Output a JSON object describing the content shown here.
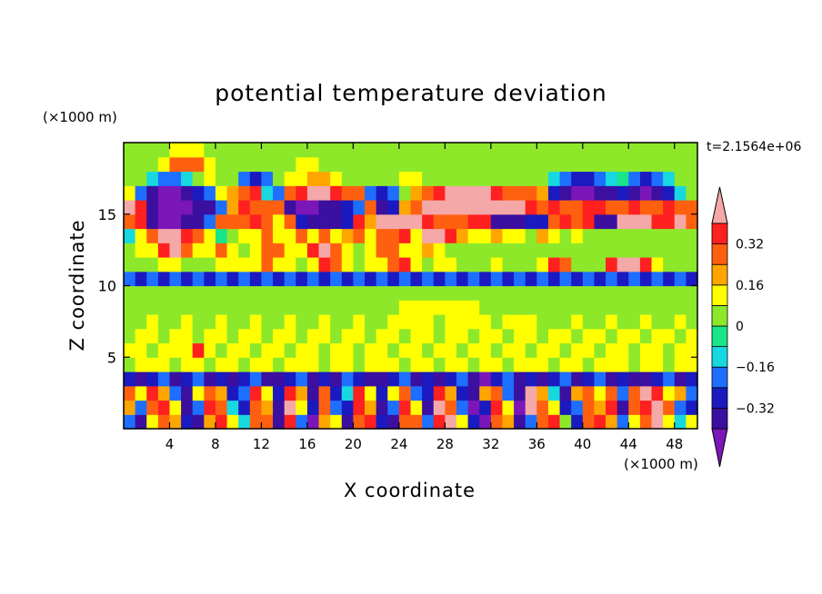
{
  "chart_data": {
    "type": "heatmap",
    "title": "potential temperature deviation",
    "xlabel": "X coordinate",
    "ylabel": "Z coordinate",
    "x_unit": "(×1000 m)",
    "z_unit": "(×1000 m)",
    "time_label": "t=2.1564e+06",
    "xlim": [
      0,
      50
    ],
    "ylim": [
      0,
      20
    ],
    "x_ticks": [
      4,
      8,
      12,
      16,
      20,
      24,
      28,
      32,
      36,
      40,
      44,
      48
    ],
    "y_ticks": [
      5,
      10,
      15
    ],
    "colorbar": {
      "levels": [
        -0.4,
        -0.32,
        -0.24,
        -0.16,
        -0.08,
        0,
        0.08,
        0.16,
        0.24,
        0.32,
        0.4
      ],
      "labels": [
        "0.32",
        "0.16",
        "0",
        "−0.16",
        "−0.32"
      ],
      "label_values": [
        0.32,
        0.16,
        0,
        -0.16,
        -0.32
      ],
      "colors": [
        "#7b16b8",
        "#3b0fa0",
        "#1a1ac0",
        "#1e6fff",
        "#17d8e0",
        "#18e48a",
        "#8ee82a",
        "#ffff00",
        "#ffa500",
        "#ff6010",
        "#ff2020",
        "#f5a8a8"
      ],
      "extend": "both"
    },
    "field": {
      "grid_spacing_km": 1,
      "description_levels": "value per cell in data units",
      "values": [
        [
          -0.2,
          -0.35,
          0.1,
          0.3,
          0.2,
          -0.3,
          -0.4,
          0.2,
          0.35,
          0.15,
          -0.1,
          0.25,
          0.3,
          -0.35,
          0.35,
          -0.2,
          -0.45,
          0.2,
          0.1,
          -0.4,
          0.3,
          0.35,
          -0.3,
          -0.4,
          0.25,
          0.3,
          -0.2,
          0.35,
          0.4,
          0.1,
          -0.3,
          -0.45,
          0.3,
          0.2,
          -0.4,
          -0.2,
          0.25,
          0.35,
          0.05,
          -0.3,
          0.25,
          0.35,
          0.2,
          -0.2,
          0.1,
          0.3,
          0.4,
          0.15,
          -0.1,
          0.1
        ],
        [
          0.2,
          -0.2,
          0.3,
          0.35,
          0.1,
          -0.4,
          -0.2,
          0.35,
          0.3,
          -0.1,
          -0.3,
          0.3,
          0.2,
          -0.4,
          0.4,
          0.1,
          -0.3,
          0.3,
          -0.2,
          -0.3,
          0.35,
          0.2,
          -0.4,
          -0.2,
          0.35,
          0.1,
          -0.35,
          0.4,
          0.25,
          -0.2,
          -0.45,
          -0.3,
          0.35,
          0.1,
          -0.45,
          0.4,
          0.3,
          0.1,
          -0.3,
          -0.2,
          0.3,
          0.2,
          0.35,
          -0.35,
          0.25,
          0.35,
          0.4,
          0.3,
          -0.2,
          -0.3
        ],
        [
          0.3,
          0.1,
          0.35,
          0.2,
          -0.2,
          -0.35,
          0.15,
          0.3,
          0.2,
          -0.3,
          -0.2,
          0.35,
          0.1,
          -0.3,
          0.35,
          0.2,
          -0.4,
          0.3,
          -0.3,
          -0.1,
          0.35,
          0.1,
          -0.3,
          0.1,
          0.3,
          -0.2,
          -0.3,
          0.35,
          0.2,
          -0.3,
          -0.4,
          0.2,
          0.3,
          -0.2,
          -0.35,
          0.4,
          0.2,
          -0.1,
          -0.35,
          0.2,
          0.3,
          0.1,
          0.3,
          -0.2,
          0.3,
          0.4,
          0.35,
          0.1,
          0.2,
          -0.2
        ],
        [
          -0.3,
          -0.35,
          -0.3,
          -0.2,
          -0.35,
          -0.3,
          -0.2,
          -0.35,
          -0.3,
          -0.4,
          -0.3,
          -0.2,
          -0.35,
          -0.4,
          -0.3,
          -0.2,
          -0.35,
          -0.3,
          -0.4,
          -0.2,
          -0.3,
          -0.35,
          -0.4,
          -0.3,
          -0.2,
          -0.35,
          -0.3,
          -0.4,
          -0.3,
          -0.2,
          -0.35,
          -0.45,
          -0.3,
          -0.2,
          -0.35,
          -0.3,
          -0.4,
          -0.3,
          -0.2,
          -0.35,
          -0.3,
          -0.2,
          -0.35,
          -0.3,
          -0.4,
          -0.35,
          -0.3,
          -0.2,
          -0.35,
          -0.3
        ],
        [
          0.05,
          0.08,
          0.1,
          0.08,
          0.05,
          0.1,
          0.08,
          0.05,
          0.1,
          0.08,
          0.05,
          0.08,
          0.1,
          0.05,
          0.08,
          0.1,
          0.08,
          0.05,
          0.1,
          0.08,
          0.05,
          0.08,
          0.1,
          0.08,
          0.05,
          0.1,
          0.08,
          0.05,
          0.1,
          0.08,
          0.05,
          0.08,
          0.1,
          0.05,
          0.08,
          0.1,
          0.08,
          0.05,
          0.1,
          0.08,
          0.05,
          0.08,
          0.1,
          0.08,
          0.05,
          0.1,
          0.08,
          0.05,
          0.1,
          0.08
        ],
        [
          0.08,
          0.1,
          0.05,
          0.1,
          0.08,
          0.1,
          0.35,
          0.1,
          0.05,
          0.08,
          0.1,
          0.05,
          0.08,
          0.1,
          0.05,
          0.08,
          0.1,
          0.05,
          0.08,
          0.1,
          0.05,
          0.08,
          0.1,
          0.05,
          0.08,
          0.1,
          0.05,
          0.08,
          0.1,
          0.05,
          0.08,
          0.1,
          0.05,
          0.08,
          0.1,
          0.05,
          0.08,
          0.1,
          0.05,
          0.08,
          0.1,
          0.05,
          0.08,
          0.1,
          0.05,
          0.08,
          0.1,
          0.05,
          0.08,
          0.1
        ],
        [
          0.05,
          0.08,
          0.1,
          0.05,
          0.08,
          0.1,
          0.05,
          0.08,
          0.1,
          0.05,
          0.08,
          0.1,
          0.05,
          0.08,
          0.1,
          0.05,
          0.08,
          0.1,
          0.05,
          0.08,
          0.1,
          0.05,
          0.08,
          0.1,
          0.05,
          0.08,
          0.1,
          0.05,
          0.08,
          0.1,
          0.05,
          0.08,
          0.1,
          0.05,
          0.08,
          0.1,
          0.05,
          0.08,
          0.1,
          0.05,
          0.08,
          0.1,
          0.05,
          0.08,
          0.1,
          0.05,
          0.08,
          0.1,
          0.05,
          0.08
        ],
        [
          0.02,
          0.05,
          0.08,
          0.02,
          0.05,
          0.08,
          0.02,
          0.05,
          0.08,
          0.02,
          0.05,
          0.08,
          0.02,
          0.05,
          0.08,
          0.02,
          0.05,
          0.08,
          0.02,
          0.05,
          0.08,
          0.02,
          0.05,
          0.08,
          0.1,
          0.1,
          0.08,
          0.05,
          0.08,
          0.1,
          0.1,
          0.08,
          0.05,
          0.08,
          0.1,
          0.08,
          0.05,
          0.02,
          0.05,
          0.08,
          0.02,
          0.05,
          0.08,
          0.02,
          0.05,
          0.08,
          0.02,
          0.05,
          0.08,
          0.02
        ],
        [
          0.02,
          0.02,
          0.05,
          0.02,
          0.02,
          0.05,
          0.02,
          0.02,
          0.05,
          0.02,
          0.02,
          0.05,
          0.02,
          0.02,
          0.05,
          0.02,
          0.02,
          0.05,
          0.02,
          0.02,
          0.05,
          0.02,
          0.02,
          0.05,
          0.1,
          0.1,
          0.1,
          0.1,
          0.1,
          0.1,
          0.1,
          0.05,
          0.02,
          0.05,
          0.02,
          0.02,
          0.05,
          0.02,
          0.02,
          0.05,
          0.02,
          0.02,
          0.05,
          0.02,
          0.02,
          0.05,
          0.02,
          0.02,
          0.05,
          0.02
        ],
        [
          0.02,
          0.02,
          0.02,
          0.02,
          0.02,
          0.02,
          0.02,
          0.02,
          0.02,
          0.02,
          0.02,
          0.02,
          0.02,
          0.02,
          0.02,
          0.02,
          0.02,
          0.02,
          0.02,
          0.02,
          0.02,
          0.02,
          0.02,
          0.02,
          0.02,
          0.02,
          0.02,
          0.02,
          0.02,
          0.02,
          0.02,
          0.02,
          0.02,
          0.02,
          0.02,
          0.02,
          0.02,
          0.02,
          0.02,
          0.02,
          0.02,
          0.02,
          0.02,
          0.02,
          0.02,
          0.02,
          0.02,
          0.02,
          0.02,
          0.02
        ],
        [
          -0.2,
          -0.3,
          -0.2,
          -0.3,
          -0.2,
          -0.3,
          -0.2,
          -0.3,
          -0.2,
          -0.3,
          -0.2,
          -0.3,
          -0.2,
          -0.3,
          -0.2,
          -0.3,
          -0.2,
          -0.3,
          -0.2,
          -0.3,
          -0.2,
          -0.3,
          -0.2,
          -0.3,
          -0.2,
          -0.3,
          -0.2,
          -0.3,
          -0.2,
          -0.3,
          -0.2,
          -0.3,
          -0.2,
          -0.3,
          -0.2,
          -0.3,
          -0.2,
          -0.3,
          -0.2,
          -0.3,
          -0.2,
          -0.3,
          -0.2,
          -0.3,
          -0.2,
          -0.3,
          -0.2,
          -0.3,
          -0.2,
          -0.3
        ],
        [
          0.02,
          0.02,
          0.05,
          0.08,
          0.1,
          0.05,
          0.02,
          0.05,
          0.08,
          0.1,
          0.12,
          0.15,
          0.3,
          0.1,
          0.08,
          0.05,
          0.1,
          0.35,
          0.25,
          0.1,
          0.05,
          0.08,
          0.1,
          0.3,
          0.35,
          0.1,
          0.05,
          0.08,
          0.1,
          0.05,
          0.02,
          0.05,
          0.08,
          0.05,
          0.02,
          0.05,
          0.08,
          0.35,
          0.3,
          0.05,
          0.02,
          0.05,
          0.35,
          0.4,
          0.4,
          0.35,
          0.1,
          0.05,
          0.02,
          0.02
        ],
        [
          0.05,
          0.08,
          0.1,
          0.35,
          0.4,
          0.3,
          0.15,
          0.08,
          0.3,
          0.1,
          0.05,
          0.08,
          0.25,
          0.3,
          0.1,
          0.08,
          0.35,
          0.4,
          0.3,
          0.08,
          0.05,
          0.1,
          0.25,
          0.3,
          0.1,
          0.08,
          0.2,
          0.1,
          0.05,
          0.05,
          0.05,
          0.05,
          0.05,
          0.05,
          0.05,
          0.05,
          0.05,
          0.05,
          0.05,
          0.05,
          0.05,
          0.05,
          0.05,
          0.05,
          0.05,
          0.05,
          0.05,
          0.05,
          0.05,
          0.05
        ],
        [
          -0.1,
          0.1,
          0.3,
          0.4,
          0.4,
          0.35,
          0.3,
          0.1,
          -0.05,
          0.05,
          0.08,
          0.1,
          0.3,
          0.1,
          0.08,
          0.3,
          0.1,
          0.25,
          0.1,
          0.2,
          0.3,
          0.1,
          0.25,
          0.3,
          0.35,
          0.1,
          0.4,
          0.4,
          0.35,
          0.2,
          0.1,
          0.1,
          0.2,
          0.1,
          0.08,
          0.05,
          0.2,
          0.1,
          0.05,
          0.08,
          0.05,
          0.05,
          0.05,
          0.05,
          0.05,
          0.05,
          0.05,
          0.05,
          0.05,
          0.05
        ],
        [
          0.3,
          0.35,
          -0.4,
          -0.45,
          -0.45,
          -0.4,
          -0.35,
          -0.2,
          0.3,
          0.25,
          0.3,
          0.35,
          0.3,
          0.1,
          0.3,
          -0.3,
          -0.4,
          -0.4,
          -0.35,
          -0.3,
          0.35,
          0.2,
          0.4,
          0.4,
          0.4,
          0.4,
          0.35,
          0.3,
          0.3,
          0.3,
          0.35,
          0.35,
          -0.4,
          -0.4,
          -0.35,
          -0.3,
          -0.3,
          0.3,
          0.35,
          0.3,
          0.35,
          -0.4,
          -0.4,
          0.4,
          0.4,
          0.4,
          0.35,
          0.35,
          0.4,
          0.3
        ],
        [
          0.4,
          0.35,
          -0.4,
          -0.45,
          -0.45,
          -0.45,
          -0.4,
          -0.35,
          -0.2,
          0.2,
          0.35,
          0.3,
          0.3,
          0.3,
          -0.35,
          -0.45,
          -0.45,
          -0.4,
          -0.4,
          -0.3,
          -0.2,
          0.3,
          -0.35,
          -0.3,
          0.2,
          0.3,
          0.4,
          0.4,
          0.4,
          0.4,
          0.4,
          0.4,
          0.4,
          0.4,
          0.4,
          0.35,
          0.3,
          0.35,
          0.3,
          0.3,
          0.35,
          0.35,
          0.3,
          0.3,
          0.35,
          0.3,
          0.3,
          0.35,
          0.3,
          0.3
        ],
        [
          0.1,
          -0.2,
          -0.4,
          -0.45,
          -0.45,
          -0.4,
          -0.3,
          -0.2,
          0.1,
          0.2,
          0.3,
          0.35,
          -0.1,
          -0.2,
          0.3,
          0.35,
          0.4,
          0.4,
          0.35,
          0.3,
          0.3,
          -0.2,
          -0.3,
          -0.2,
          0.05,
          0.2,
          0.3,
          0.35,
          0.4,
          0.4,
          0.4,
          0.4,
          0.35,
          0.3,
          0.3,
          0.3,
          0.2,
          -0.3,
          -0.4,
          -0.45,
          -0.45,
          -0.4,
          -0.35,
          -0.3,
          -0.4,
          -0.45,
          -0.4,
          -0.3,
          -0.1,
          0.05
        ],
        [
          0.05,
          0.05,
          -0.1,
          -0.2,
          -0.2,
          -0.1,
          0.05,
          0.1,
          0.05,
          0.02,
          -0.2,
          -0.3,
          -0.2,
          0.05,
          0.1,
          0.15,
          0.2,
          0.2,
          0.1,
          0.05,
          0.05,
          0.02,
          0.05,
          0.05,
          0.1,
          0.1,
          0.05,
          0.02,
          0.05,
          0.05,
          0.05,
          0.05,
          0.05,
          0.05,
          0.05,
          0.05,
          0.05,
          -0.1,
          -0.2,
          -0.3,
          -0.3,
          -0.2,
          -0.1,
          -0.05,
          -0.2,
          -0.3,
          -0.2,
          -0.1,
          0.05,
          0.05
        ],
        [
          0.05,
          0.05,
          0.05,
          0.1,
          0.25,
          0.3,
          0.25,
          0.1,
          0.05,
          0.05,
          0.05,
          0.02,
          0.05,
          0.05,
          0.05,
          0.1,
          0.1,
          0.05,
          0.02,
          0.05,
          0.05,
          0.05,
          0.05,
          0.05,
          0.05,
          0.05,
          0.05,
          0.05,
          0.05,
          0.05,
          0.02,
          0.05,
          0.05,
          0.05,
          0.05,
          0.02,
          0.02,
          0.05,
          0.05,
          0.05,
          0.05,
          0.05,
          0.05,
          0.02,
          0.05,
          0.05,
          0.05,
          0.05,
          0.05,
          0.05
        ],
        [
          0.02,
          0.02,
          0.02,
          0.05,
          0.1,
          0.15,
          0.1,
          0.05,
          0.02,
          0.02,
          0.02,
          0.02,
          0.02,
          0.02,
          0.02,
          0.05,
          0.05,
          0.02,
          0.02,
          0.02,
          0.02,
          0.02,
          0.02,
          0.02,
          0.02,
          0.02,
          0.02,
          0.02,
          0.02,
          0.02,
          0.02,
          0.02,
          0.02,
          0.02,
          0.02,
          0.02,
          0.02,
          0.02,
          0.02,
          0.02,
          0.02,
          0.02,
          0.02,
          0.02,
          0.02,
          0.02,
          0.02,
          0.02,
          0.02,
          0.02
        ]
      ]
    }
  }
}
